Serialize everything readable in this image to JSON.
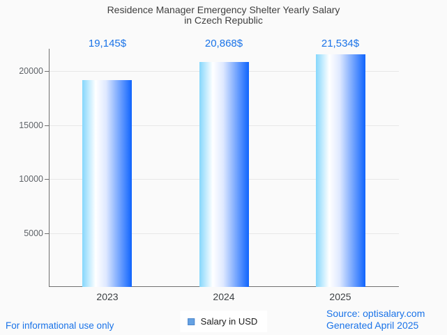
{
  "chart_data": {
    "type": "bar",
    "title": "Residence Manager Emergency Shelter Yearly Salary in Czech Republic",
    "title_line1": "Residence Manager Emergency Shelter Yearly Salary",
    "title_line2": "in Czech Republic",
    "categories": [
      "2023",
      "2024",
      "2025"
    ],
    "values": [
      19145,
      20868,
      21534
    ],
    "value_labels": [
      "19,145$",
      "20,868$",
      "21,534$"
    ],
    "series_name": "Salary in USD",
    "ylabel": "",
    "xlabel": "",
    "ylim": [
      0,
      22000
    ],
    "yticks": [
      5000,
      10000,
      15000,
      20000
    ],
    "grid": true,
    "legend_position": "bottom-center"
  },
  "footer": {
    "disclaimer": "For informational use only",
    "source_line1": "Source: optisalary.com",
    "source_line2": "Generated April 2025"
  },
  "colors": {
    "accent_blue": "#1a73e8",
    "title_gray": "#3e3e3e",
    "axis_gray": "#6f6f6f",
    "grid_gray": "#e7e7e7",
    "tick_label_gray": "#5f6368",
    "background": "#fafafa",
    "bar_gradient_left": "#85d7fc",
    "bar_gradient_mid": "#ffffff",
    "bar_gradient_right": "#0f64fd",
    "legend_marker_fill": "#66a2e3",
    "legend_marker_border": "#4c86cc"
  }
}
